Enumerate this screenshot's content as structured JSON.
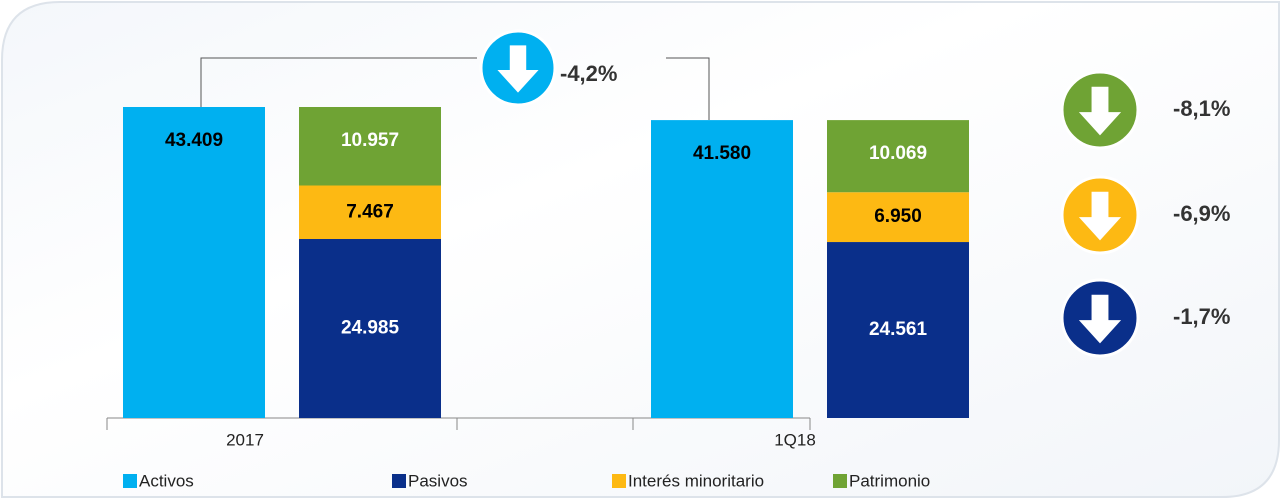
{
  "chart_data": {
    "type": "bar",
    "categories": [
      "2017",
      "1Q18"
    ],
    "series": [
      {
        "name": "Activos",
        "color": "#00b0f0",
        "label_color": "#000000",
        "stack": "a",
        "values": [
          43409,
          41580
        ],
        "value_labels": [
          "43.409",
          "41.580"
        ],
        "change": "-4,2%"
      },
      {
        "name": "Pasivos",
        "color": "#0a2f8a",
        "label_color": "#ffffff",
        "stack": "b",
        "values": [
          24985,
          24561
        ],
        "value_labels": [
          "24.985",
          "24.561"
        ],
        "change": "-1,7%"
      },
      {
        "name": "Interés minoritario",
        "color": "#fdb913",
        "label_color": "#000000",
        "stack": "b",
        "values": [
          7467,
          6950
        ],
        "value_labels": [
          "7.467",
          "6.950"
        ],
        "change": "-6,9%"
      },
      {
        "name": "Patrimonio",
        "color": "#6fa334",
        "label_color": "#ffffff",
        "stack": "b",
        "values": [
          10957,
          10069
        ],
        "value_labels": [
          "10.957",
          "10.069"
        ],
        "change": "-8,1%"
      }
    ]
  }
}
